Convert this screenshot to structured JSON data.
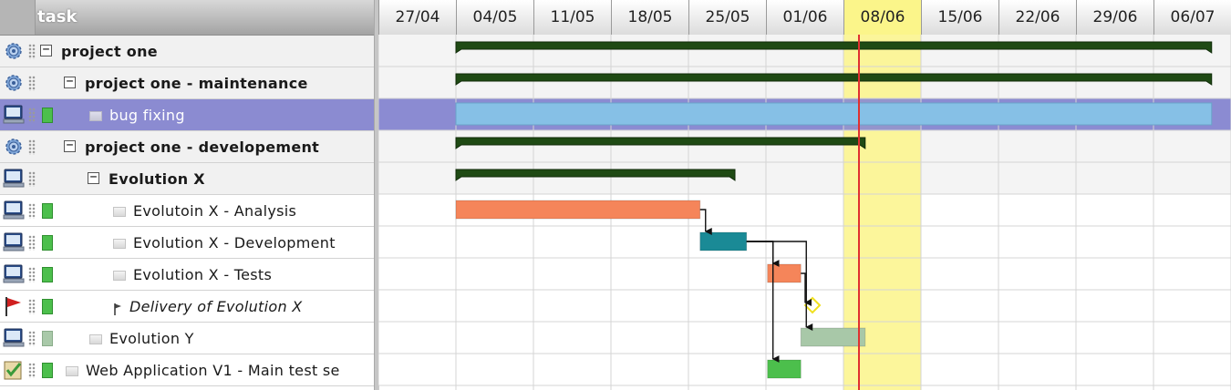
{
  "colors": {
    "summary_bar": "#1f4a14",
    "selected_bar": "#86c0e6",
    "analysis_bar": "#f5855a",
    "development_bar": "#1a8a96",
    "tests_bar": "#f5855a",
    "evolution_y_bar": "#a8c8a8",
    "web_app_bar": "#4cbf4c",
    "today_highlight": "#fbf58a",
    "today_line": "#e03030",
    "selected_row": "#8b8bd1",
    "milestone": "#f0e020"
  },
  "header": {
    "task_column_title": "task"
  },
  "timeline": {
    "weeks": [
      "27/04",
      "04/05",
      "11/05",
      "18/05",
      "25/05",
      "01/06",
      "08/06",
      "15/06",
      "22/06",
      "29/06",
      "06/07"
    ],
    "today_week_index": 6,
    "today_offset_weeks": 0.2
  },
  "tasks": [
    {
      "name": "project one",
      "type": "project",
      "level": 0,
      "expanded": true,
      "bold": true,
      "icon": "gear-icon",
      "toggle": "−",
      "start": 1.0,
      "end": 10.75,
      "bar": "summary"
    },
    {
      "name": "project one - maintenance",
      "type": "project",
      "level": 1,
      "expanded": true,
      "bold": true,
      "icon": "gear-icon",
      "toggle": "−",
      "start": 1.0,
      "end": 10.75,
      "bar": "summary"
    },
    {
      "name": "bug fixing",
      "type": "task",
      "level": 2,
      "selected": true,
      "icon": "computer-icon",
      "status": "green",
      "start": 1.0,
      "end": 10.75,
      "bar": "selected"
    },
    {
      "name": "project one - developement",
      "type": "project",
      "level": 1,
      "expanded": true,
      "bold": true,
      "icon": "gear-icon",
      "toggle": "−",
      "start": 1.0,
      "end": 6.28,
      "bar": "summary"
    },
    {
      "name": "Evolution X",
      "type": "project",
      "level": 2,
      "expanded": true,
      "bold": true,
      "icon": "computer-icon",
      "toggle": "−",
      "start": 1.0,
      "end": 4.6,
      "bar": "summary"
    },
    {
      "name": "Evolutoin X - Analysis",
      "type": "task",
      "level": 3,
      "icon": "computer-icon",
      "status": "green",
      "start": 1.0,
      "end": 4.15,
      "bar": "analysis"
    },
    {
      "name": "Evolution X - Development",
      "type": "task",
      "level": 3,
      "icon": "computer-icon",
      "status": "green",
      "start": 4.15,
      "end": 4.75,
      "bar": "development"
    },
    {
      "name": "Evolution X - Tests",
      "type": "task",
      "level": 3,
      "icon": "computer-icon",
      "status": "green",
      "start": 5.02,
      "end": 5.45,
      "bar": "tests"
    },
    {
      "name": "Delivery of Evolution X",
      "type": "milestone",
      "level": 3,
      "italic": true,
      "icon": "flag-icon",
      "status": "green",
      "start": 5.6,
      "end": 5.6,
      "bar": "milestone"
    },
    {
      "name": "Evolution Y",
      "type": "task",
      "level": 2,
      "icon": "computer-icon",
      "status": "light",
      "start": 5.45,
      "end": 6.28,
      "bar": "evolution_y"
    },
    {
      "name": "Web Application V1 - Main test se",
      "type": "task",
      "level": 1,
      "icon": "checklist-icon",
      "status": "green",
      "start": 5.02,
      "end": 5.45,
      "bar": "web_app"
    }
  ],
  "dependencies": [
    {
      "from": 5,
      "to": 6
    },
    {
      "from": 6,
      "to": 7
    },
    {
      "from": 7,
      "to": 8
    },
    {
      "from": 6,
      "to": 9
    },
    {
      "from": 6,
      "to": 10
    }
  ]
}
